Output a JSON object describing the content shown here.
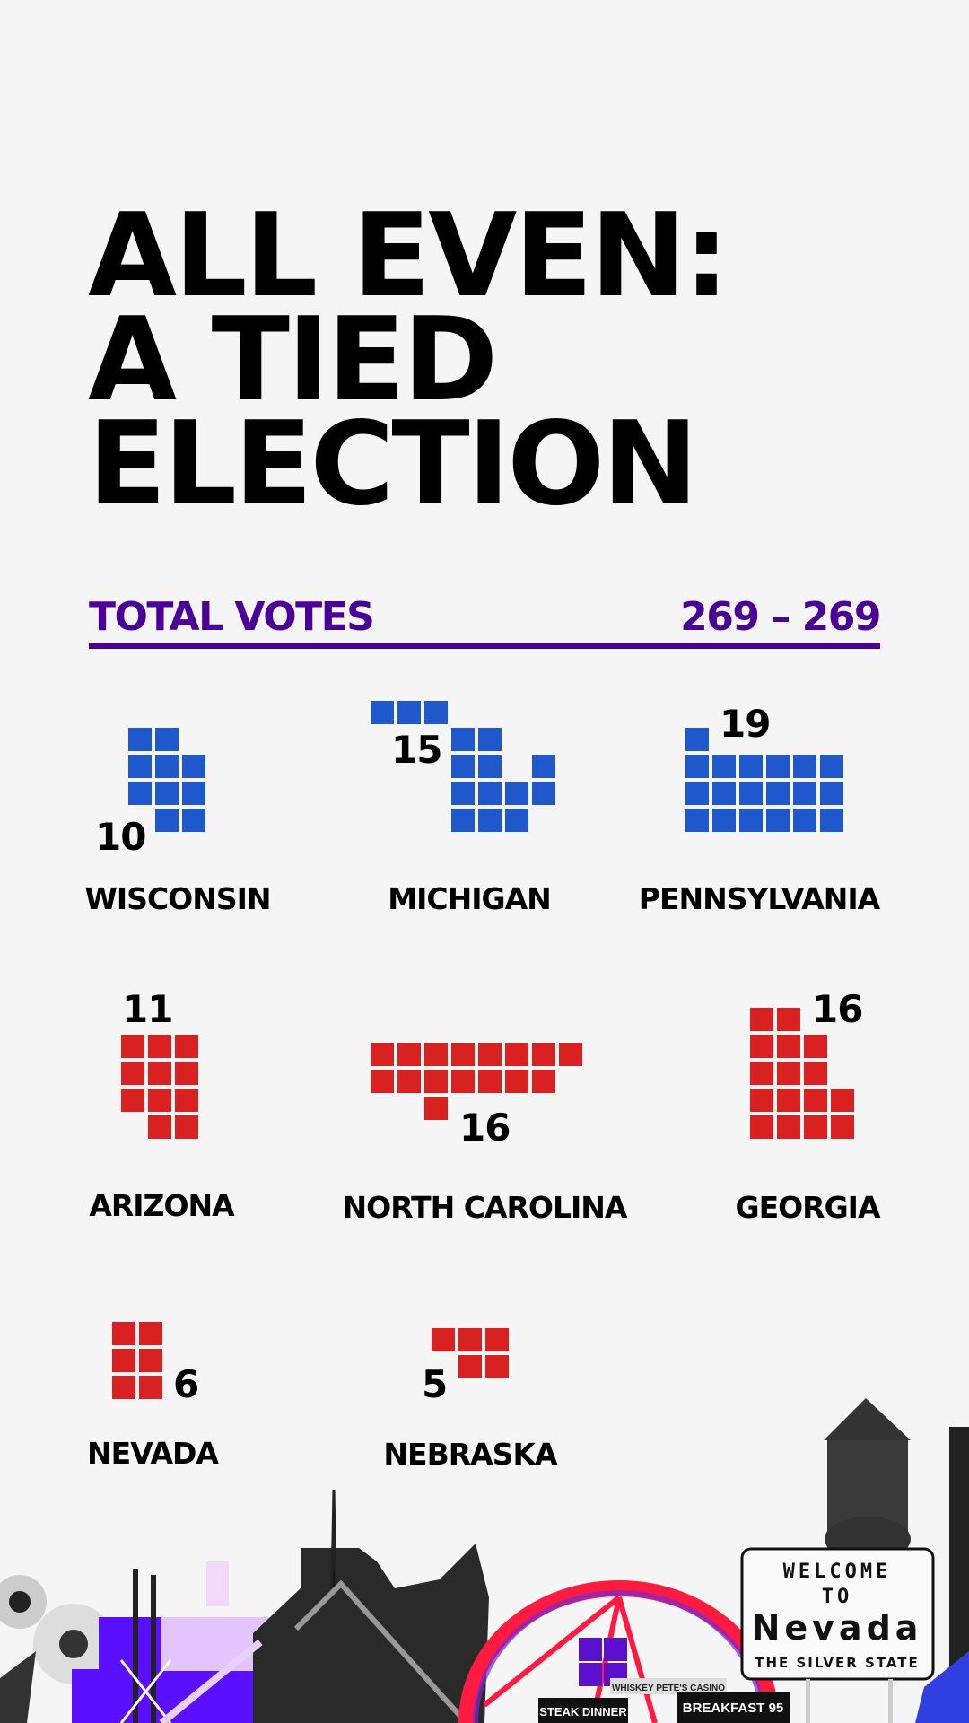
{
  "title_lines": [
    "ALL EVEN:",
    "A TIED",
    "ELECTION"
  ],
  "totals": {
    "label": "TOTAL VOTES",
    "value": "269 – 269",
    "color": "#4b0096"
  },
  "colors": {
    "dem": "#1f58cc",
    "rep": "#d92121"
  },
  "states": [
    {
      "name": "WISCONSIN",
      "votes": "10",
      "party": "dem",
      "pattern": [
        "11.",
        "111",
        "111",
        ".11"
      ]
    },
    {
      "name": "MICHIGAN",
      "votes": "15",
      "party": "dem",
      "pattern": [
        "111....",
        "...11..",
        "...11.1",
        "...1111",
        "...111."
      ]
    },
    {
      "name": "PENNSYLVANIA",
      "votes": "19",
      "party": "dem",
      "pattern": [
        "1.....",
        "111111",
        "111111",
        "111111"
      ]
    },
    {
      "name": "ARIZONA",
      "votes": "11",
      "party": "rep",
      "pattern": [
        "111",
        "111",
        "111",
        ".11"
      ]
    },
    {
      "name": "NORTH CAROLINA",
      "votes": "16",
      "party": "rep",
      "pattern": [
        "11111111",
        "1111111.",
        "..1....."
      ]
    },
    {
      "name": "GEORGIA",
      "votes": "16",
      "party": "rep",
      "pattern": [
        "11..",
        "111.",
        "111.",
        "1111",
        "1111"
      ]
    },
    {
      "name": "NEVADA",
      "votes": "6",
      "party": "rep",
      "pattern": [
        "11",
        "11",
        "11"
      ]
    },
    {
      "name": "NEBRASKA",
      "votes": "5",
      "party": "rep",
      "pattern": [
        "111",
        ".11"
      ]
    }
  ],
  "sign": {
    "line1": "WELCOME",
    "line2": "TO",
    "line3": "Nevada",
    "line4": "THE SILVER STATE"
  },
  "small_signs": {
    "casino": "WHISKEY PETE'S CASINO",
    "steak": "STEAK DINNER",
    "breakfast": "BREAKFAST 95"
  }
}
